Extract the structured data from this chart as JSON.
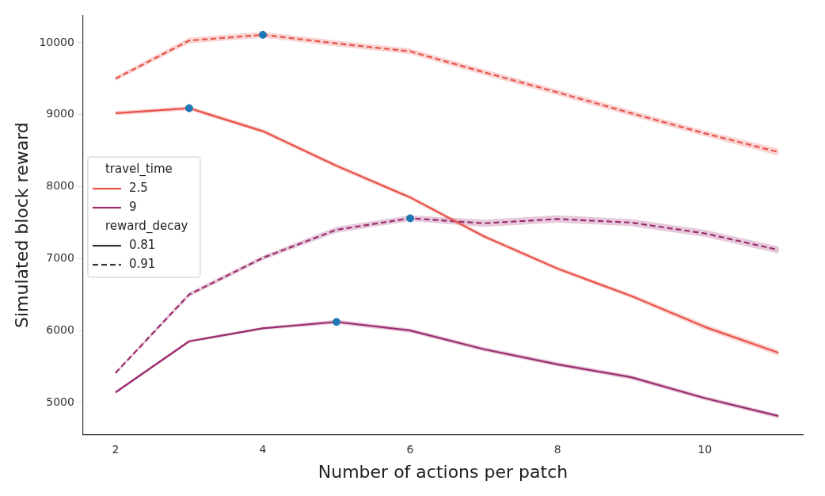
{
  "chart_data": {
    "type": "line",
    "xlabel": "Number of actions per patch",
    "ylabel": "Simulated block reward",
    "x": [
      2,
      3,
      4,
      5,
      6,
      7,
      8,
      9,
      10,
      11
    ],
    "xlim": [
      1.56,
      11.33
    ],
    "xticks": [
      2,
      4,
      6,
      8,
      10
    ],
    "ylim": [
      4550,
      10380
    ],
    "yticks": [
      5000,
      6000,
      7000,
      8000,
      9000,
      10000
    ],
    "grid": false,
    "legend": "left",
    "marker": "none",
    "series": [
      {
        "color": "#e8534a",
        "line_style": "solid",
        "values": [
          9020,
          9090,
          8770,
          8290,
          7850,
          7310,
          6860,
          6480,
          6050,
          5690
        ],
        "lower": [
          8990,
          9060,
          8740,
          8260,
          7820,
          7280,
          6830,
          6450,
          6010,
          5650
        ],
        "upper": [
          9050,
          9120,
          8800,
          8320,
          7880,
          7340,
          6890,
          6510,
          6090,
          5730
        ]
      },
      {
        "color": "#e8534a",
        "line_style": "dashed",
        "values": [
          9500,
          10030,
          10110,
          9990,
          9880,
          9590,
          9310,
          9020,
          8740,
          8480
        ],
        "lower": [
          9470,
          9990,
          10070,
          9950,
          9840,
          9550,
          9270,
          8980,
          8700,
          8430
        ],
        "upper": [
          9530,
          10070,
          10150,
          10030,
          9920,
          9630,
          9350,
          9060,
          8780,
          8530
        ]
      },
      {
        "color": "#9b2d6e",
        "line_style": "solid",
        "values": [
          5140,
          5850,
          6030,
          6120,
          6000,
          5740,
          5530,
          5350,
          5060,
          4810
        ],
        "lower": [
          5120,
          5830,
          6010,
          6090,
          5970,
          5710,
          5500,
          5320,
          5030,
          4780
        ],
        "upper": [
          5160,
          5870,
          6050,
          6150,
          6030,
          5770,
          5560,
          5380,
          5090,
          4840
        ]
      },
      {
        "color": "#9b2d6e",
        "line_style": "dashed",
        "values": [
          5410,
          6500,
          7010,
          7400,
          7560,
          7490,
          7550,
          7500,
          7350,
          7120
        ],
        "lower": [
          5390,
          6470,
          6980,
          7360,
          7520,
          7440,
          7500,
          7450,
          7300,
          7070
        ],
        "upper": [
          5430,
          6530,
          7040,
          7440,
          7600,
          7540,
          7600,
          7550,
          7400,
          7170
        ]
      },
      {
        "type": "scatter",
        "color": "#1f77b4",
        "marker": "circle",
        "x": [
          4,
          3,
          6,
          5
        ],
        "values": [
          10110,
          9090,
          7560,
          6120
        ]
      },
      {
        "name": "travel_time",
        "values": [
          null,
          null,
          null,
          null,
          null,
          null,
          null,
          null,
          null,
          null
        ]
      },
      {
        "name": "2.5",
        "color": "#e8534a",
        "line_style": "solid",
        "values": [
          null,
          null,
          null,
          null,
          null,
          null,
          null,
          null,
          null,
          null
        ]
      },
      {
        "name": "9",
        "color": "#9b2d6e",
        "line_style": "solid",
        "values": [
          null,
          null,
          null,
          null,
          null,
          null,
          null,
          null,
          null,
          null
        ]
      },
      {
        "name": "reward_decay",
        "values": [
          null,
          null,
          null,
          null,
          null,
          null,
          null,
          null,
          null,
          null
        ]
      },
      {
        "name": "0.81",
        "color": "#333333",
        "line_style": "solid",
        "values": [
          null,
          null,
          null,
          null,
          null,
          null,
          null,
          null,
          null,
          null
        ]
      },
      {
        "name": "0.91",
        "color": "#333333",
        "line_style": "dashed",
        "values": [
          null,
          null,
          null,
          null,
          null,
          null,
          null,
          null,
          null,
          null
        ]
      }
    ]
  }
}
